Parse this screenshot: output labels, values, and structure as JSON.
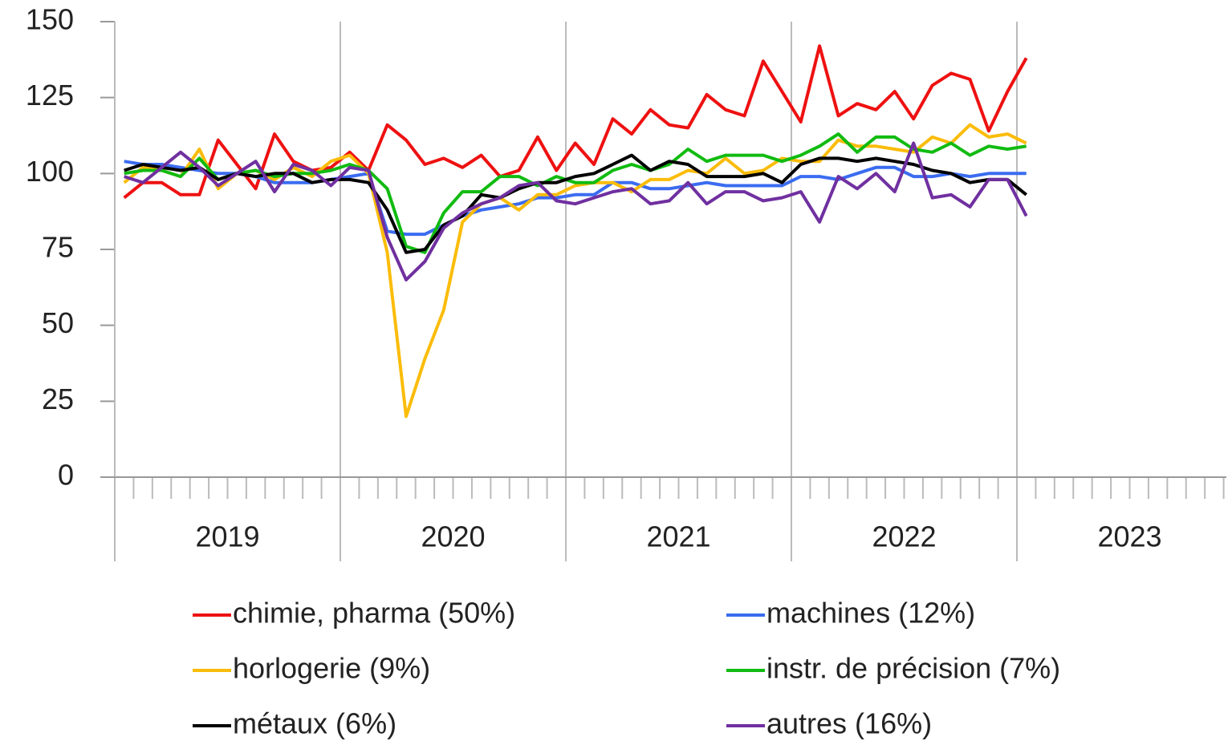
{
  "chart_data": {
    "type": "line",
    "categories": [
      null,
      null,
      null,
      null,
      null,
      null,
      null,
      null,
      null,
      null,
      null,
      null,
      null,
      null,
      null,
      null,
      null,
      null,
      null,
      null,
      null,
      null,
      null,
      null,
      null,
      null,
      null,
      null,
      null,
      null,
      null,
      null,
      null,
      null,
      null,
      null,
      null,
      null,
      null,
      null,
      null,
      null,
      null,
      null,
      null,
      null,
      null,
      null,
      null,
      null,
      null,
      null,
      null,
      null,
      null,
      null,
      null,
      null,
      null,
      null
    ],
    "x_groups": [
      "2019",
      "2020",
      "2021",
      "2022",
      "2023"
    ],
    "ylim": [
      0,
      150
    ],
    "yticks": [
      0,
      25,
      50,
      75,
      100,
      125,
      150
    ],
    "series": [
      {
        "name": "chimie, pharma (50%)",
        "color": "#ee1111",
        "values": [
          92,
          97,
          97,
          93,
          93,
          111,
          103,
          95,
          113,
          104,
          101,
          102,
          107,
          101,
          116,
          111,
          103,
          105,
          102,
          106,
          99,
          101,
          112,
          101,
          110,
          103,
          118,
          113,
          121,
          116,
          115,
          126,
          121,
          119,
          137,
          127,
          117,
          142,
          119,
          123,
          121,
          127,
          118,
          129,
          133,
          131,
          114,
          127,
          138,
          null,
          null,
          null,
          null,
          null,
          null,
          null,
          null,
          null,
          null,
          null
        ]
      },
      {
        "name": "machines (12%)",
        "color": "#3b6cf0",
        "values": [
          104,
          103,
          103,
          102,
          101,
          100,
          100,
          99,
          97,
          97,
          97,
          98,
          99,
          100,
          81,
          80,
          80,
          83,
          86,
          88,
          89,
          90,
          92,
          92,
          93,
          93,
          97,
          97,
          95,
          95,
          96,
          97,
          96,
          96,
          96,
          96,
          99,
          99,
          98,
          100,
          102,
          102,
          99,
          99,
          100,
          99,
          100,
          100,
          100,
          null,
          null,
          null,
          null,
          null,
          null,
          null,
          null,
          null,
          null,
          null
        ]
      },
      {
        "name": "horlogerie (9%)",
        "color": "#fbbc0a",
        "values": [
          97,
          102,
          101,
          99,
          108,
          95,
          100,
          101,
          98,
          102,
          99,
          104,
          106,
          100,
          74,
          20,
          39,
          55,
          84,
          90,
          92,
          88,
          93,
          93,
          96,
          97,
          97,
          94,
          98,
          98,
          101,
          100,
          105,
          100,
          101,
          105,
          104,
          104,
          111,
          109,
          109,
          108,
          107,
          112,
          110,
          116,
          112,
          113,
          110,
          null,
          null,
          null,
          null,
          null,
          null,
          null,
          null,
          null,
          null,
          null
        ]
      },
      {
        "name": "instr. de précision (7%)",
        "color": "#11bb11",
        "values": [
          100,
          101,
          101,
          99,
          105,
          98,
          100,
          101,
          99,
          100,
          100,
          101,
          103,
          101,
          95,
          76,
          74,
          87,
          94,
          94,
          99,
          99,
          96,
          99,
          97,
          97,
          101,
          103,
          101,
          103,
          108,
          104,
          106,
          106,
          106,
          104,
          106,
          109,
          113,
          107,
          112,
          112,
          108,
          107,
          110,
          106,
          109,
          108,
          109,
          null,
          null,
          null,
          null,
          null,
          null,
          null,
          null,
          null,
          null,
          null
        ]
      },
      {
        "name": "métaux (6%)",
        "color": "#000000",
        "values": [
          101,
          103,
          102,
          101,
          102,
          98,
          100,
          99,
          100,
          100,
          97,
          98,
          98,
          97,
          88,
          74,
          75,
          83,
          86,
          93,
          92,
          95,
          97,
          97,
          99,
          100,
          103,
          106,
          101,
          104,
          103,
          99,
          99,
          99,
          100,
          97,
          103,
          105,
          105,
          104,
          105,
          104,
          103,
          101,
          100,
          97,
          98,
          98,
          93,
          null,
          null,
          null,
          null,
          null,
          null,
          null,
          null,
          null,
          null,
          null
        ]
      },
      {
        "name": "autres (16%)",
        "color": "#7030a0",
        "values": [
          99,
          97,
          102,
          107,
          102,
          96,
          100,
          104,
          94,
          103,
          101,
          96,
          102,
          101,
          79,
          65,
          71,
          82,
          87,
          90,
          92,
          96,
          97,
          91,
          90,
          92,
          94,
          95,
          90,
          91,
          97,
          90,
          94,
          94,
          91,
          92,
          94,
          84,
          99,
          95,
          100,
          94,
          110,
          92,
          93,
          89,
          98,
          98,
          86,
          null,
          null,
          null,
          null,
          null,
          null,
          null,
          null,
          null,
          null,
          null
        ]
      }
    ]
  }
}
